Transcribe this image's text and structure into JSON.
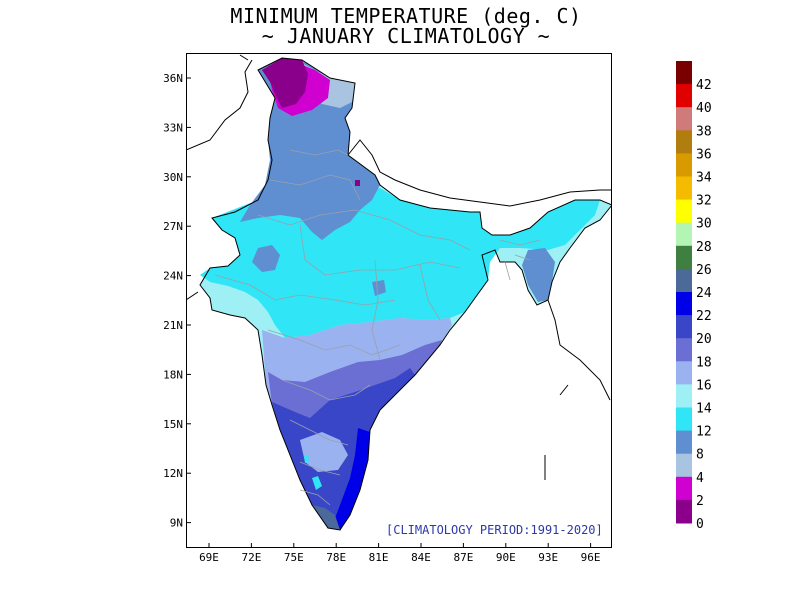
{
  "title": {
    "line1": "MINIMUM TEMPERATURE (deg. C)",
    "line2": "~ JANUARY CLIMATOLOGY ~"
  },
  "map": {
    "region": "India",
    "annotation": "[CLIMATOLOGY PERIOD:1991-2020]",
    "x_ticks": [
      "69E",
      "72E",
      "75E",
      "78E",
      "81E",
      "84E",
      "87E",
      "90E",
      "93E",
      "96E"
    ],
    "y_ticks": [
      "36N",
      "33N",
      "30N",
      "27N",
      "24N",
      "21N",
      "18N",
      "15N",
      "12N",
      "9N"
    ]
  },
  "colorbar": {
    "labels": [
      "42",
      "40",
      "38",
      "36",
      "34",
      "32",
      "30",
      "28",
      "26",
      "24",
      "22",
      "20",
      "18",
      "16",
      "14",
      "12",
      "8",
      "4",
      "2",
      "0"
    ],
    "colors": [
      "#7a0000",
      "#e00000",
      "#d07a7a",
      "#b07d0e",
      "#d99a00",
      "#f5bb00",
      "#ffff00",
      "#b3f5b3",
      "#3f7f3f",
      "#4b6a9a",
      "#0000e8",
      "#3a46c8",
      "#6b6fd4",
      "#9bb2f0",
      "#9ff0f5",
      "#30e5f5",
      "#5f8fd0",
      "#a8c4e0",
      "#d000d0",
      "#8b008b"
    ]
  },
  "colors": {
    "lt0": "#8b008b",
    "0-2": "#d000d0",
    "2-4": "#a8c4e0",
    "4-8": "#5f8fd0",
    "8-12": "#30e5f5",
    "12-14": "#9ff0f5",
    "14-16": "#9bb2f0",
    "16-18": "#6b6fd4",
    "18-20": "#3a46c8",
    "20-22": "#0000e8",
    "22-24": "#4b6a9a",
    "period_text": "#2b3aa8",
    "border": "#000000",
    "state_lines": "#9aa0aa"
  }
}
